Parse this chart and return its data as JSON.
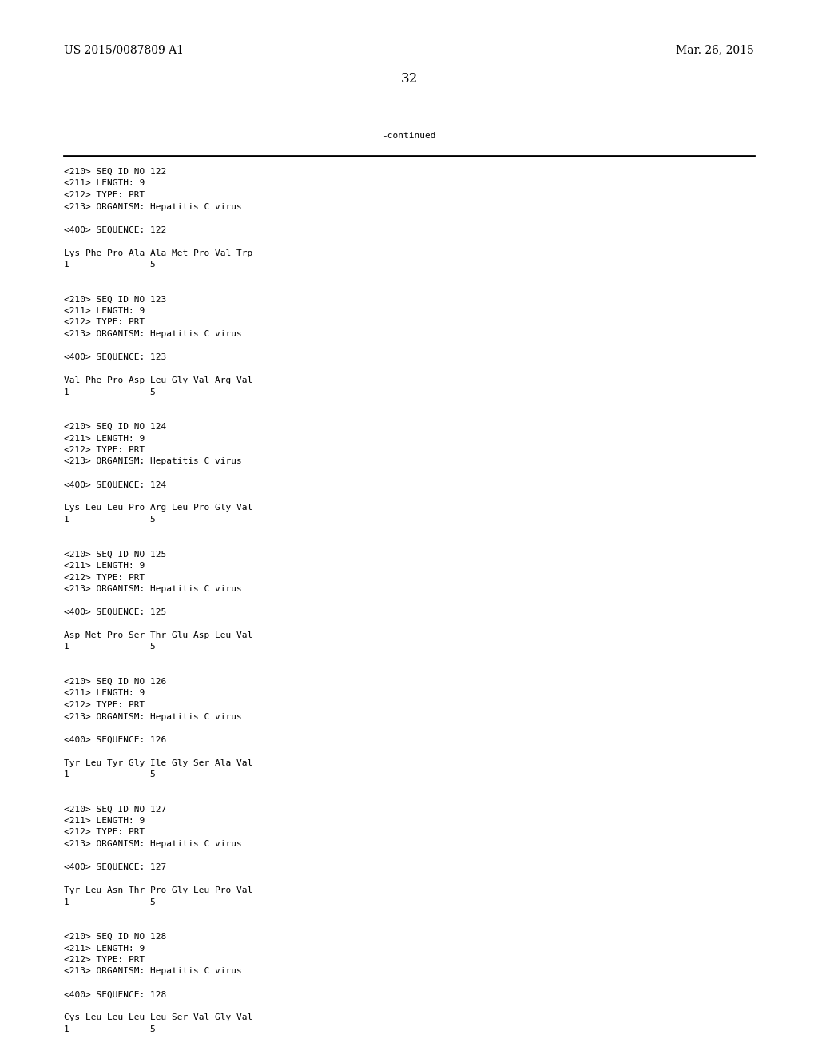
{
  "background_color": "#ffffff",
  "top_left_text": "US 2015/0087809 A1",
  "top_right_text": "Mar. 26, 2015",
  "page_number": "32",
  "continued_label": "-continued",
  "monospace_font_size": 8.0,
  "header_font_size": 10,
  "page_num_font_size": 12,
  "content_lines": [
    "<210> SEQ ID NO 122",
    "<211> LENGTH: 9",
    "<212> TYPE: PRT",
    "<213> ORGANISM: Hepatitis C virus",
    "",
    "<400> SEQUENCE: 122",
    "",
    "Lys Phe Pro Ala Ala Met Pro Val Trp",
    "1               5",
    "",
    "",
    "<210> SEQ ID NO 123",
    "<211> LENGTH: 9",
    "<212> TYPE: PRT",
    "<213> ORGANISM: Hepatitis C virus",
    "",
    "<400> SEQUENCE: 123",
    "",
    "Val Phe Pro Asp Leu Gly Val Arg Val",
    "1               5",
    "",
    "",
    "<210> SEQ ID NO 124",
    "<211> LENGTH: 9",
    "<212> TYPE: PRT",
    "<213> ORGANISM: Hepatitis C virus",
    "",
    "<400> SEQUENCE: 124",
    "",
    "Lys Leu Leu Pro Arg Leu Pro Gly Val",
    "1               5",
    "",
    "",
    "<210> SEQ ID NO 125",
    "<211> LENGTH: 9",
    "<212> TYPE: PRT",
    "<213> ORGANISM: Hepatitis C virus",
    "",
    "<400> SEQUENCE: 125",
    "",
    "Asp Met Pro Ser Thr Glu Asp Leu Val",
    "1               5",
    "",
    "",
    "<210> SEQ ID NO 126",
    "<211> LENGTH: 9",
    "<212> TYPE: PRT",
    "<213> ORGANISM: Hepatitis C virus",
    "",
    "<400> SEQUENCE: 126",
    "",
    "Tyr Leu Tyr Gly Ile Gly Ser Ala Val",
    "1               5",
    "",
    "",
    "<210> SEQ ID NO 127",
    "<211> LENGTH: 9",
    "<212> TYPE: PRT",
    "<213> ORGANISM: Hepatitis C virus",
    "",
    "<400> SEQUENCE: 127",
    "",
    "Tyr Leu Asn Thr Pro Gly Leu Pro Val",
    "1               5",
    "",
    "",
    "<210> SEQ ID NO 128",
    "<211> LENGTH: 9",
    "<212> TYPE: PRT",
    "<213> ORGANISM: Hepatitis C virus",
    "",
    "<400> SEQUENCE: 128",
    "",
    "Cys Leu Leu Leu Leu Ser Val Gly Val",
    "1               5"
  ]
}
